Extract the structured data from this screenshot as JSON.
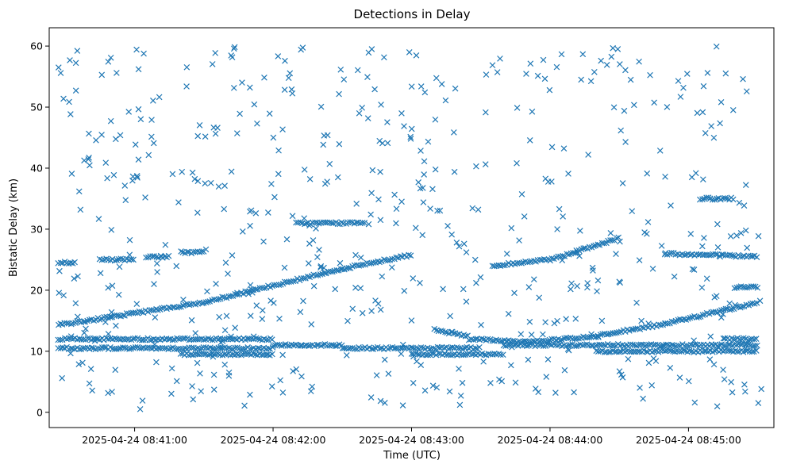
{
  "chart_data": {
    "type": "scatter",
    "title": "Detections in Delay",
    "xlabel": "Time (UTC)",
    "ylabel": "Bistatic Delay (km)",
    "marker": "x",
    "color": "#1f77b4",
    "grid": false,
    "legend": "none",
    "x_unit": "time (HH:MM:SS on 2025-04-24)",
    "xlim": [
      "08:40:23",
      "08:45:37"
    ],
    "ylim": [
      -2.5,
      63
    ],
    "xticks": [
      "2025-04-24 08:41:00",
      "2025-04-24 08:42:00",
      "2025-04-24 08:43:00",
      "2025-04-24 08:44:00",
      "2025-04-24 08:45:00"
    ],
    "yticks": [
      "0",
      "10",
      "20",
      "30",
      "40",
      "50",
      "60"
    ],
    "track_series": [
      {
        "x": [
          "08:40:27",
          "08:41:30",
          "08:42:30",
          "08:43:00"
        ],
        "y": [
          14.3,
          18.0,
          23.5,
          25.8
        ]
      },
      {
        "x": [
          "08:43:10",
          "08:43:25"
        ],
        "y": [
          13.5,
          12.5
        ]
      },
      {
        "x": [
          "08:43:25",
          "08:43:50",
          "08:44:20",
          "08:44:50",
          "08:45:30"
        ],
        "y": [
          12.0,
          11.5,
          12.5,
          14.5,
          18.0
        ]
      },
      {
        "x": [
          "08:43:35",
          "08:44:00",
          "08:44:30"
        ],
        "y": [
          24.0,
          25.0,
          28.5
        ]
      },
      {
        "x": [
          "08:40:27",
          "08:40:35"
        ],
        "y": [
          24.5,
          24.5
        ]
      },
      {
        "x": [
          "08:40:45",
          "08:41:00"
        ],
        "y": [
          25.0,
          25.0
        ]
      },
      {
        "x": [
          "08:41:05",
          "08:41:15"
        ],
        "y": [
          25.5,
          25.5
        ]
      },
      {
        "x": [
          "08:41:20",
          "08:41:30"
        ],
        "y": [
          26.2,
          26.2
        ]
      },
      {
        "x": [
          "08:42:10",
          "08:42:40"
        ],
        "y": [
          31.0,
          31.0
        ]
      },
      {
        "x": [
          "08:44:50",
          "08:45:30"
        ],
        "y": [
          26.0,
          25.5
        ]
      },
      {
        "x": [
          "08:45:05",
          "08:45:20"
        ],
        "y": [
          35.0,
          35.0
        ]
      },
      {
        "x": [
          "08:40:27",
          "08:42:00"
        ],
        "y": [
          12.0,
          12.0
        ]
      },
      {
        "x": [
          "08:40:27",
          "08:42:00"
        ],
        "y": [
          10.5,
          10.5
        ]
      },
      {
        "x": [
          "08:41:20",
          "08:42:00"
        ],
        "y": [
          9.5,
          9.5
        ]
      },
      {
        "x": [
          "08:42:00",
          "08:42:30"
        ],
        "y": [
          11.0,
          11.0
        ]
      },
      {
        "x": [
          "08:42:30",
          "08:43:30"
        ],
        "y": [
          10.5,
          10.5
        ]
      },
      {
        "x": [
          "08:43:00",
          "08:43:40"
        ],
        "y": [
          9.5,
          9.5
        ]
      },
      {
        "x": [
          "08:43:40",
          "08:45:30"
        ],
        "y": [
          11.0,
          11.0
        ]
      },
      {
        "x": [
          "08:44:20",
          "08:45:30"
        ],
        "y": [
          10.0,
          10.0
        ]
      },
      {
        "x": [
          "08:45:15",
          "08:45:30"
        ],
        "y": [
          12.0,
          12.0
        ]
      },
      {
        "x": [
          "08:45:20",
          "08:45:30"
        ],
        "y": [
          20.5,
          20.5
        ]
      }
    ],
    "scattered_points": {
      "description_note": "",
      "approx_count": 560,
      "x_range": [
        "08:40:27",
        "08:45:32"
      ],
      "y_range": [
        0.5,
        60
      ]
    }
  }
}
